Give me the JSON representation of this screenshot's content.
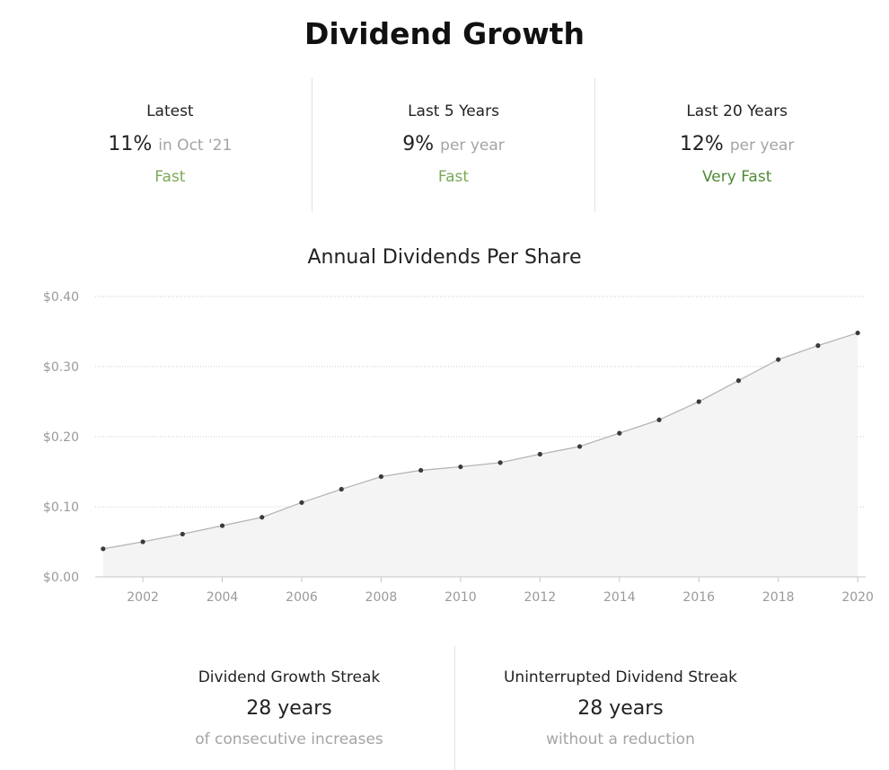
{
  "page": {
    "title": "Dividend Growth"
  },
  "stats": [
    {
      "label": "Latest",
      "value": "11%",
      "suffix": "in Oct '21",
      "rating": "Fast",
      "rating_color": "#7ba957"
    },
    {
      "label": "Last 5 Years",
      "value": "9%",
      "suffix": "per year",
      "rating": "Fast",
      "rating_color": "#7ba957"
    },
    {
      "label": "Last 20 Years",
      "value": "12%",
      "suffix": "per year",
      "rating": "Very Fast",
      "rating_color": "#4e8a35"
    }
  ],
  "chart_data": {
    "type": "area",
    "title": "Annual Dividends Per Share",
    "x": [
      2001,
      2002,
      2003,
      2004,
      2005,
      2006,
      2007,
      2008,
      2009,
      2010,
      2011,
      2012,
      2013,
      2014,
      2015,
      2016,
      2017,
      2018,
      2019,
      2020
    ],
    "values": [
      0.04,
      0.05,
      0.061,
      0.073,
      0.085,
      0.106,
      0.125,
      0.143,
      0.152,
      0.157,
      0.163,
      0.175,
      0.186,
      0.205,
      0.224,
      0.25,
      0.28,
      0.31,
      0.33,
      0.348
    ],
    "xticks": [
      "2002",
      "2004",
      "2006",
      "2008",
      "2010",
      "2012",
      "2014",
      "2016",
      "2018",
      "2020"
    ],
    "yticks": [
      "$0.00",
      "$0.10",
      "$0.20",
      "$0.30",
      "$0.40"
    ],
    "ylim": [
      0,
      0.4
    ],
    "xlim": [
      2000.8,
      2020.2
    ],
    "grid": true,
    "colors": {
      "line": "#b5b5b5",
      "fill": "#f4f4f4",
      "point": "#3a3a3a",
      "grid": "#cccccc"
    }
  },
  "streaks": [
    {
      "label": "Dividend Growth Streak",
      "value": "28 years",
      "note": "of consecutive increases"
    },
    {
      "label": "Uninterrupted Dividend Streak",
      "value": "28 years",
      "note": "without a reduction"
    }
  ]
}
